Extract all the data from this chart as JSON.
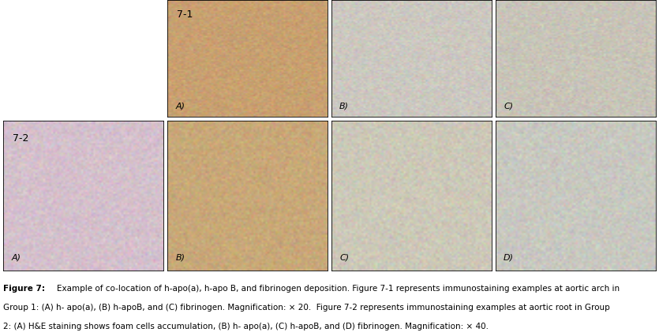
{
  "figure_title": "Figure 7:",
  "caption_line1": "Example of co-location of h-apo(a), h-apo B, and fibrinogen deposition. Figure 7-1 represents immunostaining examples at aortic arch in",
  "caption_line2": "Group 1: (A) h- apo(a), (B) h-apoB, and (C) fibrinogen. Magnification: × 20.  Figure 7-2 represents immunostaining examples at aortic root in Group",
  "caption_line3": "2: (A) H&E staining shows foam cells accumulation, (B) h- apo(a), (C) h-apoB, and (D) fibrinogen. Magnification: × 40.",
  "row1_label": "7-1",
  "row2_label": "7-2",
  "row1_sublabels": [
    "A)",
    "B)",
    "C)"
  ],
  "row2_sublabels": [
    "A)",
    "B)",
    "C)",
    "D)"
  ],
  "bg_color": "#ffffff",
  "border_color": "#000000",
  "caption_fontsize": 7.5,
  "label_fontsize": 9,
  "sublabel_fontsize": 8,
  "fig_width": 8.35,
  "fig_height": 4.26,
  "panel_border_lw": 0.6,
  "row1_panel_colors": [
    "#c8a070",
    "#ccc8c0",
    "#c8c4b8"
  ],
  "row2_panel_colors": [
    "#d4c0cc",
    "#c8a878",
    "#ccc8b8",
    "#c8c8c0"
  ]
}
